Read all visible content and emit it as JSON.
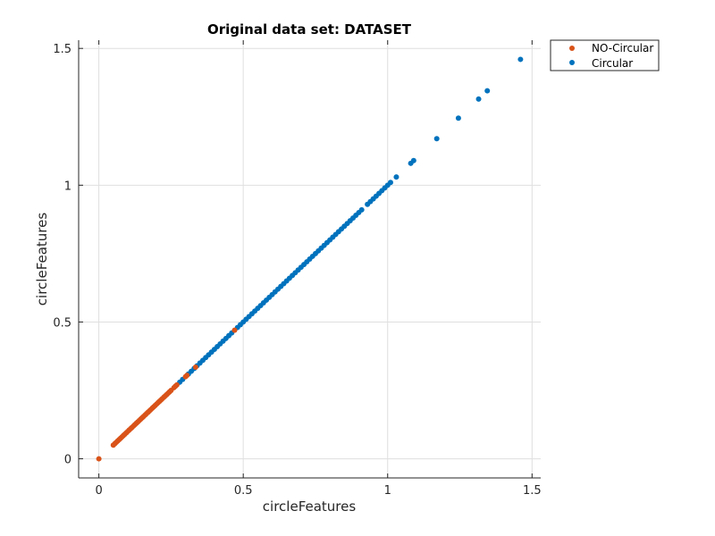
{
  "chart_data": {
    "type": "scatter",
    "title": "Original data set: DATASET",
    "xlabel": "circleFeatures",
    "ylabel": "circleFeatures",
    "xlim": [
      -0.07,
      1.53
    ],
    "ylim": [
      -0.07,
      1.53
    ],
    "xticks": [
      0,
      0.5,
      1,
      1.5
    ],
    "yticks": [
      0,
      0.5,
      1,
      1.5
    ],
    "xtick_labels": [
      "0",
      "0.5",
      "1",
      "1.5"
    ],
    "ytick_labels": [
      "0",
      "0.5",
      "1",
      "1.5"
    ],
    "grid": true,
    "legend_position": "outside-top-right",
    "series": [
      {
        "name": "NO-Circular",
        "color": "#d95319",
        "points": [
          [
            0,
            0
          ],
          [
            0.05,
            0.05
          ],
          [
            0.055,
            0.055
          ],
          [
            0.06,
            0.06
          ],
          [
            0.065,
            0.065
          ],
          [
            0.07,
            0.07
          ],
          [
            0.075,
            0.075
          ],
          [
            0.08,
            0.08
          ],
          [
            0.085,
            0.085
          ],
          [
            0.09,
            0.09
          ],
          [
            0.095,
            0.095
          ],
          [
            0.1,
            0.1
          ],
          [
            0.105,
            0.105
          ],
          [
            0.11,
            0.11
          ],
          [
            0.115,
            0.115
          ],
          [
            0.12,
            0.12
          ],
          [
            0.125,
            0.125
          ],
          [
            0.13,
            0.13
          ],
          [
            0.135,
            0.135
          ],
          [
            0.14,
            0.14
          ],
          [
            0.145,
            0.145
          ],
          [
            0.15,
            0.15
          ],
          [
            0.155,
            0.155
          ],
          [
            0.16,
            0.16
          ],
          [
            0.165,
            0.165
          ],
          [
            0.17,
            0.17
          ],
          [
            0.175,
            0.175
          ],
          [
            0.18,
            0.18
          ],
          [
            0.185,
            0.185
          ],
          [
            0.19,
            0.19
          ],
          [
            0.195,
            0.195
          ],
          [
            0.2,
            0.2
          ],
          [
            0.205,
            0.205
          ],
          [
            0.21,
            0.21
          ],
          [
            0.215,
            0.215
          ],
          [
            0.22,
            0.22
          ],
          [
            0.225,
            0.225
          ],
          [
            0.23,
            0.23
          ],
          [
            0.235,
            0.235
          ],
          [
            0.24,
            0.24
          ],
          [
            0.245,
            0.245
          ],
          [
            0.25,
            0.25
          ],
          [
            0.26,
            0.26
          ],
          [
            0.265,
            0.265
          ],
          [
            0.27,
            0.27
          ],
          [
            0.3,
            0.3
          ],
          [
            0.305,
            0.305
          ],
          [
            0.335,
            0.335
          ],
          [
            0.47,
            0.47
          ]
        ]
      },
      {
        "name": "Circular",
        "color": "#0072bd",
        "points": [
          [
            0.28,
            0.28
          ],
          [
            0.29,
            0.29
          ],
          [
            0.31,
            0.31
          ],
          [
            0.32,
            0.32
          ],
          [
            0.33,
            0.33
          ],
          [
            0.34,
            0.34
          ],
          [
            0.35,
            0.35
          ],
          [
            0.36,
            0.36
          ],
          [
            0.37,
            0.37
          ],
          [
            0.38,
            0.38
          ],
          [
            0.39,
            0.39
          ],
          [
            0.4,
            0.4
          ],
          [
            0.41,
            0.41
          ],
          [
            0.42,
            0.42
          ],
          [
            0.43,
            0.43
          ],
          [
            0.44,
            0.44
          ],
          [
            0.45,
            0.45
          ],
          [
            0.46,
            0.46
          ],
          [
            0.48,
            0.48
          ],
          [
            0.49,
            0.49
          ],
          [
            0.5,
            0.5
          ],
          [
            0.51,
            0.51
          ],
          [
            0.52,
            0.52
          ],
          [
            0.53,
            0.53
          ],
          [
            0.54,
            0.54
          ],
          [
            0.55,
            0.55
          ],
          [
            0.56,
            0.56
          ],
          [
            0.57,
            0.57
          ],
          [
            0.58,
            0.58
          ],
          [
            0.59,
            0.59
          ],
          [
            0.6,
            0.6
          ],
          [
            0.61,
            0.61
          ],
          [
            0.62,
            0.62
          ],
          [
            0.63,
            0.63
          ],
          [
            0.64,
            0.64
          ],
          [
            0.65,
            0.65
          ],
          [
            0.66,
            0.66
          ],
          [
            0.67,
            0.67
          ],
          [
            0.68,
            0.68
          ],
          [
            0.69,
            0.69
          ],
          [
            0.7,
            0.7
          ],
          [
            0.71,
            0.71
          ],
          [
            0.72,
            0.72
          ],
          [
            0.73,
            0.73
          ],
          [
            0.74,
            0.74
          ],
          [
            0.75,
            0.75
          ],
          [
            0.76,
            0.76
          ],
          [
            0.77,
            0.77
          ],
          [
            0.78,
            0.78
          ],
          [
            0.79,
            0.79
          ],
          [
            0.8,
            0.8
          ],
          [
            0.81,
            0.81
          ],
          [
            0.82,
            0.82
          ],
          [
            0.83,
            0.83
          ],
          [
            0.84,
            0.84
          ],
          [
            0.85,
            0.85
          ],
          [
            0.86,
            0.86
          ],
          [
            0.87,
            0.87
          ],
          [
            0.88,
            0.88
          ],
          [
            0.89,
            0.89
          ],
          [
            0.9,
            0.9
          ],
          [
            0.91,
            0.91
          ],
          [
            0.93,
            0.93
          ],
          [
            0.94,
            0.94
          ],
          [
            0.95,
            0.95
          ],
          [
            0.96,
            0.96
          ],
          [
            0.97,
            0.97
          ],
          [
            0.98,
            0.98
          ],
          [
            0.99,
            0.99
          ],
          [
            1.0,
            1.0
          ],
          [
            1.01,
            1.01
          ],
          [
            1.03,
            1.03
          ],
          [
            1.08,
            1.08
          ],
          [
            1.09,
            1.09
          ],
          [
            1.17,
            1.17
          ],
          [
            1.245,
            1.245
          ],
          [
            1.315,
            1.315
          ],
          [
            1.345,
            1.345
          ],
          [
            1.46,
            1.46
          ]
        ]
      }
    ]
  }
}
